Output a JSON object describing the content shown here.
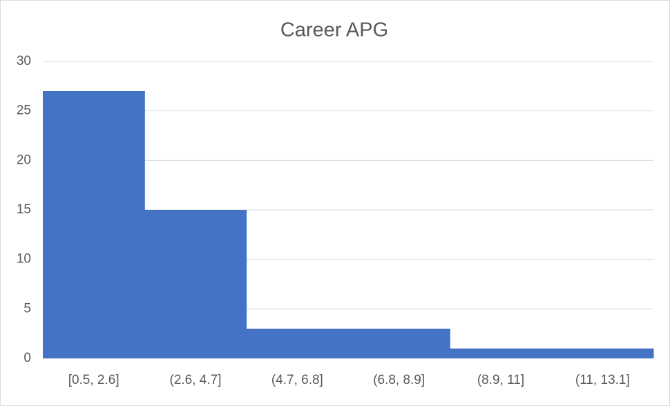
{
  "chart_data": {
    "type": "bar",
    "title": "Career APG",
    "categories": [
      "[0.5, 2.6]",
      "(2.6, 4.7]",
      "(4.7, 6.8]",
      "(6.8, 8.9]",
      "(8.9, 11]",
      "(11, 13.1]"
    ],
    "values": [
      27,
      15,
      3,
      3,
      1,
      1
    ],
    "color": "#4472c4",
    "ylim": [
      0,
      30
    ],
    "yticks": [
      0,
      5,
      10,
      15,
      20,
      25,
      30
    ],
    "grid": true
  }
}
